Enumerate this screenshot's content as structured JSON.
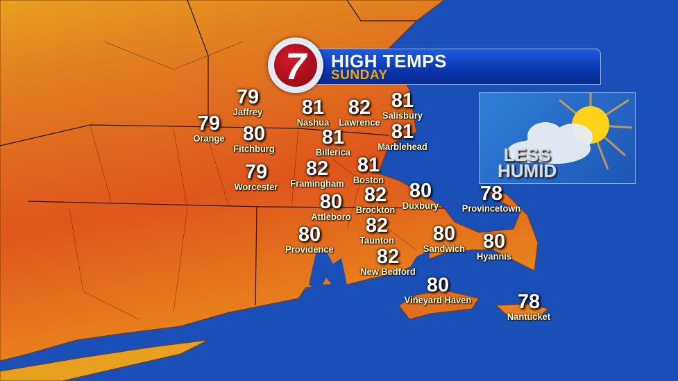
{
  "header": {
    "title": "HIGH TEMPS",
    "subtitle": "SUNDAY",
    "logo": "7"
  },
  "colors": {
    "ocean": "#1a4fb8",
    "land": "#e0581e",
    "land_north": "#e8a020",
    "banner": "#0a36b0",
    "subtitle": "#f0a800"
  },
  "inset": {
    "line1": "LESS",
    "line2": "HUMID",
    "icon": "sun-behind-cloud-icon"
  },
  "cities": [
    {
      "name": "Jaffrey",
      "temp": "79"
    },
    {
      "name": "Orange",
      "temp": "79"
    },
    {
      "name": "Fitchburg",
      "temp": "80"
    },
    {
      "name": "Worcester",
      "temp": "79"
    },
    {
      "name": "Nashua",
      "temp": "81"
    },
    {
      "name": "Lawrence",
      "temp": "82"
    },
    {
      "name": "Salisbury",
      "temp": "81"
    },
    {
      "name": "Billerica",
      "temp": "81"
    },
    {
      "name": "Marblehead",
      "temp": "81"
    },
    {
      "name": "Framingham",
      "temp": "82"
    },
    {
      "name": "Boston",
      "temp": "81"
    },
    {
      "name": "Brockton",
      "temp": "82"
    },
    {
      "name": "Duxbury",
      "temp": "80"
    },
    {
      "name": "Attleboro",
      "temp": "80"
    },
    {
      "name": "Provincetown",
      "temp": "78"
    },
    {
      "name": "Providence",
      "temp": "80"
    },
    {
      "name": "Taunton",
      "temp": "82"
    },
    {
      "name": "Sandwich",
      "temp": "80"
    },
    {
      "name": "Hyannis",
      "temp": "80"
    },
    {
      "name": "New Bedford",
      "temp": "82"
    },
    {
      "name": "Vineyard Haven",
      "temp": "80"
    },
    {
      "name": "Nantucket",
      "temp": "78"
    }
  ]
}
